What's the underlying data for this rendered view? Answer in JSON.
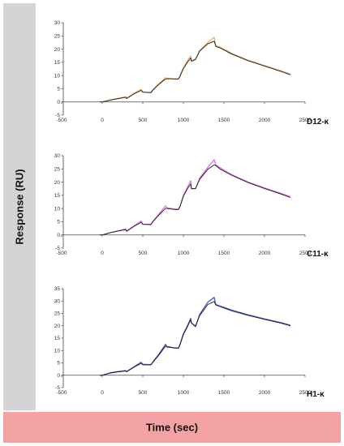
{
  "ylabel": "Response (RU)",
  "xlabel": "Time (sec)",
  "chart_data": [
    {
      "type": "line",
      "label": "D12-κ",
      "xlim": [
        -500,
        2500
      ],
      "ylim": [
        -5,
        30
      ],
      "xticks": [
        -500,
        0,
        500,
        1000,
        1500,
        2000,
        2500
      ],
      "yticks": [
        -5,
        0,
        5,
        10,
        15,
        20,
        25,
        30
      ],
      "series": [
        {
          "color": "#f0b070",
          "x": [
            -30,
            0,
            100,
            200,
            290,
            300,
            400,
            480,
            500,
            600,
            620,
            700,
            780,
            800,
            900,
            940,
            960,
            1000,
            1050,
            1090,
            1100,
            1150,
            1200,
            1300,
            1380,
            1400,
            1450,
            1600,
            1800,
            2000,
            2200,
            2320
          ],
          "y": [
            0,
            0,
            0.8,
            1.4,
            2.0,
            1.4,
            3.4,
            4.8,
            3.8,
            3.6,
            4.6,
            7.0,
            9.2,
            9.0,
            8.8,
            8.8,
            10.2,
            13.0,
            15.6,
            17.5,
            15.6,
            16.2,
            19.5,
            22.5,
            24.5,
            21.3,
            20.8,
            18.4,
            15.8,
            13.8,
            11.8,
            10.5
          ]
        },
        {
          "color": "#1a1a1a",
          "x": [
            -30,
            0,
            100,
            200,
            290,
            300,
            400,
            480,
            500,
            600,
            620,
            700,
            780,
            800,
            900,
            940,
            960,
            1000,
            1050,
            1090,
            1100,
            1150,
            1200,
            1300,
            1380,
            1400,
            1450,
            1600,
            1800,
            2000,
            2200,
            2320
          ],
          "y": [
            0,
            0,
            0.7,
            1.3,
            1.8,
            1.3,
            3.2,
            4.4,
            3.7,
            3.5,
            4.3,
            6.7,
            8.7,
            8.8,
            8.7,
            8.7,
            9.8,
            12.6,
            15.0,
            16.6,
            15.4,
            16.1,
            19.2,
            22.0,
            23.0,
            21.0,
            20.5,
            18.1,
            15.6,
            13.6,
            11.6,
            10.3
          ]
        }
      ]
    },
    {
      "type": "line",
      "label": "C11-κ",
      "xlim": [
        -500,
        2500
      ],
      "ylim": [
        -5,
        30
      ],
      "xticks": [
        -500,
        0,
        500,
        1000,
        1500,
        2000,
        2500
      ],
      "yticks": [
        -5,
        0,
        5,
        10,
        15,
        20,
        25,
        30
      ],
      "series": [
        {
          "color": "#e070e0",
          "x": [
            -30,
            0,
            100,
            200,
            290,
            300,
            400,
            480,
            500,
            600,
            620,
            700,
            780,
            800,
            900,
            940,
            960,
            1000,
            1050,
            1090,
            1100,
            1150,
            1200,
            1300,
            1380,
            1400,
            1450,
            1600,
            1800,
            2000,
            2200,
            2320
          ],
          "y": [
            0,
            0,
            0.9,
            1.6,
            2.3,
            1.5,
            3.6,
            5.3,
            4.1,
            4.0,
            5.0,
            8.0,
            11.0,
            10.2,
            9.8,
            9.8,
            11.0,
            15.0,
            18.0,
            20.5,
            17.5,
            17.5,
            21.5,
            25.5,
            28.5,
            26.5,
            25.5,
            22.8,
            20.0,
            17.8,
            15.8,
            14.5
          ]
        },
        {
          "color": "#1a1a1a",
          "x": [
            -30,
            0,
            100,
            200,
            290,
            300,
            400,
            480,
            500,
            600,
            620,
            700,
            780,
            800,
            900,
            940,
            960,
            1000,
            1050,
            1090,
            1100,
            1150,
            1200,
            1300,
            1380,
            1400,
            1450,
            1600,
            1800,
            2000,
            2200,
            2320
          ],
          "y": [
            0,
            0,
            0.8,
            1.5,
            2.0,
            1.4,
            3.4,
            4.8,
            4.0,
            3.9,
            4.8,
            7.6,
            10.0,
            10.0,
            9.6,
            9.6,
            10.8,
            14.6,
            17.5,
            19.3,
            17.5,
            17.6,
            21.0,
            24.8,
            26.5,
            26.3,
            25.0,
            22.5,
            19.8,
            17.6,
            15.5,
            14.2
          ]
        }
      ]
    },
    {
      "type": "line",
      "label": "H1-κ",
      "xlim": [
        -500,
        2500
      ],
      "ylim": [
        -5,
        35
      ],
      "xticks": [
        -500,
        0,
        500,
        1000,
        1500,
        2000,
        2500
      ],
      "yticks": [
        -5,
        0,
        5,
        10,
        15,
        20,
        25,
        30,
        35
      ],
      "series": [
        {
          "color": "#4a5ad8",
          "x": [
            -30,
            0,
            100,
            200,
            290,
            300,
            400,
            480,
            500,
            600,
            620,
            700,
            780,
            800,
            900,
            940,
            960,
            1000,
            1050,
            1090,
            1100,
            1150,
            1200,
            1300,
            1380,
            1400,
            1450,
            1600,
            1800,
            2000,
            2200,
            2320
          ],
          "y": [
            0,
            0,
            1.0,
            1.5,
            1.9,
            1.5,
            3.6,
            5.3,
            4.4,
            4.3,
            5.2,
            8.6,
            12.5,
            11.6,
            11.0,
            11.0,
            12.6,
            16.8,
            20.0,
            23.0,
            21.2,
            19.6,
            24.5,
            29.5,
            31.5,
            28.6,
            28.0,
            26.3,
            24.4,
            22.8,
            21.3,
            20.2
          ]
        },
        {
          "color": "#1a1a1a",
          "x": [
            -30,
            0,
            100,
            200,
            290,
            300,
            400,
            480,
            500,
            600,
            620,
            700,
            780,
            800,
            900,
            940,
            960,
            1000,
            1050,
            1090,
            1100,
            1150,
            1200,
            1300,
            1380,
            1400,
            1450,
            1600,
            1800,
            2000,
            2200,
            2320
          ],
          "y": [
            0,
            0,
            0.9,
            1.4,
            1.7,
            1.4,
            3.4,
            4.8,
            4.2,
            4.2,
            5.0,
            8.2,
            11.8,
            11.4,
            11.0,
            11.0,
            12.4,
            16.4,
            19.6,
            22.4,
            21.0,
            20.0,
            24.0,
            28.6,
            29.8,
            28.4,
            27.8,
            26.0,
            24.2,
            22.6,
            21.1,
            20.0
          ]
        }
      ]
    }
  ]
}
